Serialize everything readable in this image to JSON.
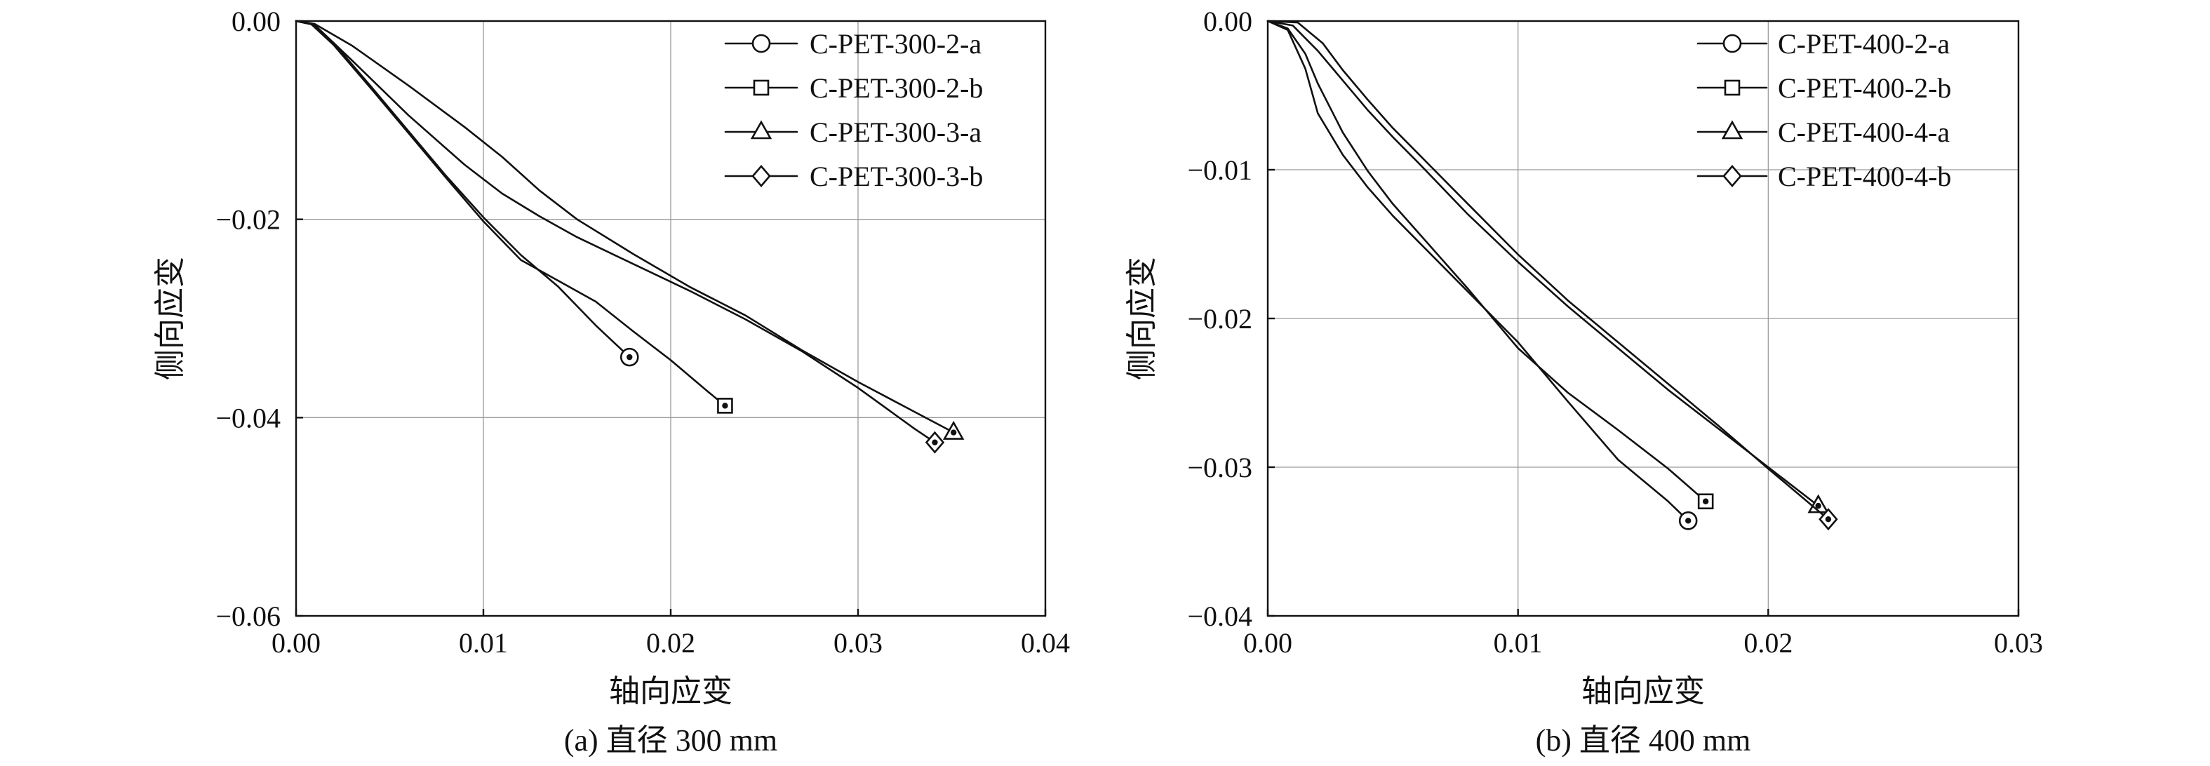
{
  "chart_data": [
    {
      "type": "line",
      "title": "",
      "caption": "(a) 直径 300 mm",
      "xlabel": "轴向应变",
      "ylabel": "侧向应变",
      "xlim": [
        0,
        0.04
      ],
      "ylim": [
        -0.06,
        0
      ],
      "x_ticks": [
        0,
        0.01,
        0.02,
        0.03,
        0.04
      ],
      "x_tick_labels": [
        "0.00",
        "0.01",
        "0.02",
        "0.03",
        "0.04"
      ],
      "y_ticks": [
        0,
        -0.02,
        -0.04,
        -0.06
      ],
      "y_tick_labels": [
        "0.00",
        "−0.02",
        "−0.04",
        "−0.06"
      ],
      "grid": true,
      "legend_position": "top-right",
      "series": [
        {
          "name": "C-PET-300-2-a",
          "marker": "circle",
          "x": [
            0,
            0.0008,
            0.002,
            0.004,
            0.006,
            0.008,
            0.01,
            0.012,
            0.014,
            0.016,
            0.0178
          ],
          "y": [
            0,
            -0.0003,
            -0.0022,
            -0.0066,
            -0.0111,
            -0.0156,
            -0.0198,
            -0.0236,
            -0.0268,
            -0.0307,
            -0.0339
          ]
        },
        {
          "name": "C-PET-300-2-b",
          "marker": "square",
          "x": [
            0,
            0.0008,
            0.002,
            0.004,
            0.006,
            0.008,
            0.01,
            0.012,
            0.014,
            0.016,
            0.018,
            0.02,
            0.022,
            0.0229
          ],
          "y": [
            0,
            -0.0003,
            -0.0024,
            -0.0068,
            -0.0113,
            -0.0158,
            -0.0202,
            -0.0241,
            -0.0262,
            -0.0283,
            -0.0313,
            -0.0342,
            -0.0374,
            -0.0388
          ]
        },
        {
          "name": "C-PET-300-3-a",
          "marker": "triangle",
          "x": [
            0,
            0.001,
            0.003,
            0.006,
            0.009,
            0.011,
            0.013,
            0.015,
            0.018,
            0.021,
            0.024,
            0.027,
            0.03,
            0.033,
            0.0351
          ],
          "y": [
            0,
            -0.0003,
            -0.0025,
            -0.0065,
            -0.0107,
            -0.0137,
            -0.0171,
            -0.02,
            -0.0235,
            -0.0268,
            -0.0297,
            -0.0332,
            -0.0364,
            -0.0394,
            -0.0415
          ]
        },
        {
          "name": "C-PET-300-3-b",
          "marker": "diamond",
          "x": [
            0,
            0.001,
            0.003,
            0.006,
            0.009,
            0.011,
            0.013,
            0.015,
            0.018,
            0.021,
            0.024,
            0.027,
            0.03,
            0.033,
            0.0341
          ],
          "y": [
            0,
            -0.0004,
            -0.004,
            -0.0095,
            -0.0145,
            -0.0174,
            -0.0197,
            -0.0218,
            -0.0245,
            -0.0272,
            -0.0301,
            -0.0333,
            -0.037,
            -0.0411,
            -0.0425
          ]
        }
      ]
    },
    {
      "type": "line",
      "title": "",
      "caption": "(b) 直径 400 mm",
      "xlabel": "轴向应变",
      "ylabel": "侧向应变",
      "xlim": [
        0,
        0.03
      ],
      "ylim": [
        -0.04,
        0
      ],
      "x_ticks": [
        0,
        0.01,
        0.02,
        0.03
      ],
      "x_tick_labels": [
        "0.00",
        "0.01",
        "0.02",
        "0.03"
      ],
      "y_ticks": [
        0,
        -0.01,
        -0.02,
        -0.03,
        -0.04
      ],
      "y_tick_labels": [
        "0.00",
        "−0.01",
        "−0.02",
        "−0.03",
        "−0.04"
      ],
      "grid": true,
      "legend_position": "top-right",
      "series": [
        {
          "name": "C-PET-400-2-a",
          "marker": "circle",
          "x": [
            0,
            0.0008,
            0.0015,
            0.002,
            0.003,
            0.004,
            0.005,
            0.006,
            0.008,
            0.01,
            0.012,
            0.014,
            0.016,
            0.0168
          ],
          "y": [
            0,
            -0.0006,
            -0.0032,
            -0.0062,
            -0.009,
            -0.0112,
            -0.0131,
            -0.0148,
            -0.0182,
            -0.0216,
            -0.0256,
            -0.0295,
            -0.0323,
            -0.0336
          ]
        },
        {
          "name": "C-PET-400-2-b",
          "marker": "square",
          "x": [
            0,
            0.0008,
            0.0015,
            0.002,
            0.003,
            0.004,
            0.005,
            0.006,
            0.008,
            0.01,
            0.012,
            0.014,
            0.016,
            0.0175
          ],
          "y": [
            0,
            -0.0005,
            -0.0022,
            -0.0042,
            -0.0075,
            -0.0101,
            -0.0123,
            -0.0142,
            -0.018,
            -0.022,
            -0.025,
            -0.0275,
            -0.0301,
            -0.0323
          ]
        },
        {
          "name": "C-PET-400-4-a",
          "marker": "triangle",
          "x": [
            0,
            0.001,
            0.002,
            0.003,
            0.004,
            0.005,
            0.006,
            0.008,
            0.01,
            0.012,
            0.014,
            0.016,
            0.018,
            0.02,
            0.022
          ],
          "y": [
            0,
            -0.0003,
            -0.002,
            -0.004,
            -0.006,
            -0.0078,
            -0.0095,
            -0.013,
            -0.0162,
            -0.0192,
            -0.022,
            -0.0248,
            -0.0274,
            -0.03,
            -0.0326
          ]
        },
        {
          "name": "C-PET-400-4-b",
          "marker": "diamond",
          "x": [
            0,
            0.0012,
            0.0022,
            0.003,
            0.004,
            0.005,
            0.006,
            0.008,
            0.01,
            0.012,
            0.014,
            0.016,
            0.018,
            0.02,
            0.0224
          ],
          "y": [
            0,
            -0.0001,
            -0.0015,
            -0.0033,
            -0.0053,
            -0.0072,
            -0.0089,
            -0.0123,
            -0.0157,
            -0.0188,
            -0.0216,
            -0.0244,
            -0.0272,
            -0.0301,
            -0.0335
          ]
        }
      ]
    }
  ]
}
